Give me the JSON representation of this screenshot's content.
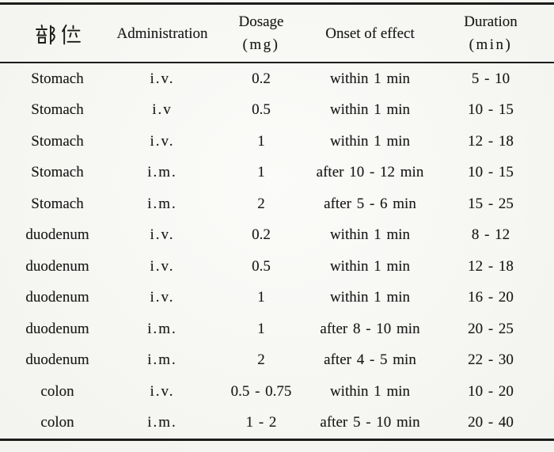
{
  "page": {
    "background_color": "#f7f7f3",
    "rule_color": "#1c1c1c",
    "text_color": "#1a1a1a"
  },
  "table": {
    "columns": [
      {
        "label": "部位"
      },
      {
        "label": "Administration"
      },
      {
        "label": "Dosage",
        "sub": "(mg)"
      },
      {
        "label": "Onset of effect"
      },
      {
        "label": "Duration",
        "sub": "(min)"
      }
    ],
    "rows": [
      [
        "Stomach",
        "i.v.",
        "0.2",
        "within 1 min",
        "5 - 10"
      ],
      [
        "Stomach",
        "i.v",
        "0.5",
        "within 1 min",
        "10 - 15"
      ],
      [
        "Stomach",
        "i.v.",
        "1",
        "within 1 min",
        "12 - 18"
      ],
      [
        "Stomach",
        "i.m.",
        "1",
        "after 10 - 12 min",
        "10 - 15"
      ],
      [
        "Stomach",
        "i.m.",
        "2",
        "after 5 - 6 min",
        "15 - 25"
      ],
      [
        "duodenum",
        "i.v.",
        "0.2",
        "within 1 min",
        "8 - 12"
      ],
      [
        "duodenum",
        "i.v.",
        "0.5",
        "within 1 min",
        "12 - 18"
      ],
      [
        "duodenum",
        "i.v.",
        "1",
        "within 1 min",
        "16 - 20"
      ],
      [
        "duodenum",
        "i.m.",
        "1",
        "after 8 - 10 min",
        "20 - 25"
      ],
      [
        "duodenum",
        "i.m.",
        "2",
        "after 4 - 5 min",
        "22 - 30"
      ],
      [
        "colon",
        "i.v.",
        "0.5 - 0.75",
        "within 1 min",
        "10 - 20"
      ],
      [
        "colon",
        "i.m.",
        "1 - 2",
        "after 5 - 10 min",
        "20 - 40"
      ]
    ]
  },
  "chart_data": {
    "type": "table",
    "title": "",
    "columns": [
      "部位",
      "Administration",
      "Dosage (mg)",
      "Onset of effect",
      "Duration (min)"
    ],
    "rows": [
      [
        "Stomach",
        "i.v.",
        "0.2",
        "within 1 min",
        "5 - 10"
      ],
      [
        "Stomach",
        "i.v",
        "0.5",
        "within 1 min",
        "10 - 15"
      ],
      [
        "Stomach",
        "i.v.",
        "1",
        "within 1 min",
        "12 - 18"
      ],
      [
        "Stomach",
        "i.m.",
        "1",
        "after 10 - 12 min",
        "10 - 15"
      ],
      [
        "Stomach",
        "i.m.",
        "2",
        "after 5 - 6 min",
        "15 - 25"
      ],
      [
        "duodenum",
        "i.v.",
        "0.2",
        "within 1 min",
        "8 - 12"
      ],
      [
        "duodenum",
        "i.v.",
        "0.5",
        "within 1 min",
        "12 - 18"
      ],
      [
        "duodenum",
        "i.v.",
        "1",
        "within 1 min",
        "16 - 20"
      ],
      [
        "duodenum",
        "i.m.",
        "1",
        "after 8 - 10 min",
        "20 - 25"
      ],
      [
        "duodenum",
        "i.m.",
        "2",
        "after 4 - 5 min",
        "22 - 30"
      ],
      [
        "colon",
        "i.v.",
        "0.5 - 0.75",
        "within 1 min",
        "10 - 20"
      ],
      [
        "colon",
        "i.m.",
        "1 - 2",
        "after 5 - 10 min",
        "20 - 40"
      ]
    ]
  }
}
